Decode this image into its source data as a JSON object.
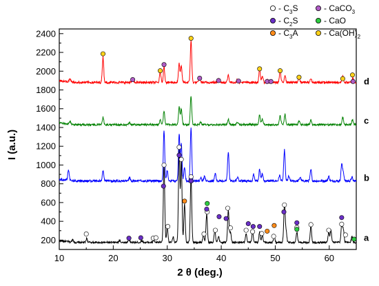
{
  "chart_data": {
    "type": "line",
    "title": "",
    "xlabel_main": "2 θ",
    "xlabel_unit": " (deg.)",
    "ylabel": "I (a.u.)",
    "xlim": [
      10,
      65
    ],
    "ylim": [
      100,
      2450
    ],
    "x_ticks": [
      "10",
      "20",
      "30",
      "40",
      "50",
      "60"
    ],
    "x_tick_values": [
      10,
      20,
      30,
      40,
      50,
      60
    ],
    "y_ticks": [
      "200",
      "400",
      "600",
      "800",
      "1000",
      "1200",
      "1400",
      "1600",
      "1800",
      "2000",
      "2200",
      "2400"
    ],
    "y_tick_values": [
      200,
      400,
      600,
      800,
      1000,
      1200,
      1400,
      1600,
      1800,
      2000,
      2200,
      2400
    ],
    "grid": false,
    "legend": {
      "placement": "top-right",
      "entries": [
        {
          "symbol": "C3S",
          "base": "C",
          "sub": "3",
          "tail": "S",
          "color": "#ffffff",
          "stroke": "#000000"
        },
        {
          "symbol": "CaCO3",
          "base": "CaCO",
          "sub": "3",
          "tail": "",
          "color": "#b05cc6",
          "stroke": "#000000"
        },
        {
          "symbol": "C2S",
          "base": "C",
          "sub": "2",
          "tail": "S",
          "color": "#6a2fc6",
          "stroke": "#000000"
        },
        {
          "symbol": "CaO",
          "base": "CaO",
          "sub": "",
          "tail": "",
          "color": "#2ecc40",
          "stroke": "#000000"
        },
        {
          "symbol": "C3A",
          "base": "C",
          "sub": "3",
          "tail": "A",
          "color": "#ff8c1a",
          "stroke": "#000000"
        },
        {
          "symbol": "Ca(OH)2",
          "base": "Ca(OH)",
          "sub": "2",
          "tail": "",
          "color": "#ffd21a",
          "stroke": "#000000"
        }
      ]
    },
    "series": [
      {
        "name": "a",
        "color": "#000000",
        "baseline": 175,
        "noise": 10,
        "peaks": [
          [
            12.5,
            30
          ],
          [
            15.1,
            45
          ],
          [
            21.2,
            25
          ],
          [
            22.9,
            30
          ],
          [
            25.3,
            20
          ],
          [
            27.5,
            25
          ],
          [
            29.4,
            830
          ],
          [
            30.0,
            170
          ],
          [
            31.1,
            55
          ],
          [
            32.2,
            1000
          ],
          [
            32.6,
            880
          ],
          [
            33.2,
            410
          ],
          [
            34.4,
            700
          ],
          [
            36.7,
            80
          ],
          [
            37.3,
            300
          ],
          [
            38.8,
            130
          ],
          [
            39.5,
            60
          ],
          [
            41.3,
            350
          ],
          [
            41.7,
            110
          ],
          [
            44.6,
            90
          ],
          [
            45.8,
            120
          ],
          [
            47.1,
            110
          ],
          [
            47.6,
            80
          ],
          [
            49.8,
            60
          ],
          [
            51.7,
            415
          ],
          [
            52.0,
            120
          ],
          [
            54.0,
            110
          ],
          [
            56.6,
            180
          ],
          [
            59.9,
            110
          ],
          [
            60.3,
            130
          ],
          [
            62.3,
            185
          ],
          [
            62.6,
            140
          ],
          [
            64.2,
            60
          ]
        ]
      },
      {
        "name": "b",
        "color": "#0000ff",
        "baseline": 830,
        "noise": 12,
        "peaks": [
          [
            11.7,
            110
          ],
          [
            18.1,
            110
          ],
          [
            23.0,
            35
          ],
          [
            29.4,
            540
          ],
          [
            30.0,
            110
          ],
          [
            32.2,
            500
          ],
          [
            32.6,
            400
          ],
          [
            33.2,
            140
          ],
          [
            34.4,
            570
          ],
          [
            36.2,
            40
          ],
          [
            36.9,
            50
          ],
          [
            38.9,
            90
          ],
          [
            41.3,
            310
          ],
          [
            43.0,
            40
          ],
          [
            46.0,
            70
          ],
          [
            47.1,
            120
          ],
          [
            47.6,
            80
          ],
          [
            50.8,
            60
          ],
          [
            51.7,
            330
          ],
          [
            52.5,
            50
          ],
          [
            54.6,
            40
          ],
          [
            56.6,
            120
          ],
          [
            59.9,
            50
          ],
          [
            62.3,
            180
          ],
          [
            62.6,
            90
          ],
          [
            64.2,
            40
          ]
        ]
      },
      {
        "name": "c",
        "color": "#008000",
        "baseline": 1430,
        "noise": 10,
        "peaks": [
          [
            12.0,
            30
          ],
          [
            18.1,
            80
          ],
          [
            23.0,
            25
          ],
          [
            28.7,
            50
          ],
          [
            29.4,
            150
          ],
          [
            32.2,
            190
          ],
          [
            32.6,
            170
          ],
          [
            34.4,
            310
          ],
          [
            36.2,
            30
          ],
          [
            41.3,
            60
          ],
          [
            43.0,
            25
          ],
          [
            47.1,
            110
          ],
          [
            47.6,
            60
          ],
          [
            50.9,
            100
          ],
          [
            51.8,
            110
          ],
          [
            54.4,
            40
          ],
          [
            56.6,
            50
          ],
          [
            62.5,
            80
          ],
          [
            64.3,
            50
          ]
        ]
      },
      {
        "name": "d",
        "color": "#ff0000",
        "baseline": 1880,
        "noise": 12,
        "peaks": [
          [
            12.0,
            30
          ],
          [
            18.1,
            270
          ],
          [
            23.6,
            35
          ],
          [
            28.7,
            110
          ],
          [
            29.4,
            170
          ],
          [
            32.2,
            200
          ],
          [
            32.6,
            170
          ],
          [
            34.4,
            450
          ],
          [
            36.0,
            60
          ],
          [
            39.5,
            50
          ],
          [
            41.3,
            80
          ],
          [
            43.0,
            30
          ],
          [
            47.1,
            140
          ],
          [
            47.6,
            70
          ],
          [
            48.5,
            30
          ],
          [
            50.9,
            120
          ],
          [
            51.8,
            80
          ],
          [
            54.4,
            60
          ],
          [
            56.6,
            40
          ],
          [
            62.5,
            70
          ],
          [
            64.4,
            50
          ]
        ]
      }
    ],
    "markers": {
      "C3S": [
        [
          15.0,
          265
        ],
        [
          27.4,
          220
        ],
        [
          27.9,
          225
        ],
        [
          29.4,
          1000
        ],
        [
          30.1,
          345
        ],
        [
          32.2,
          1190
        ],
        [
          32.6,
          1060
        ],
        [
          34.4,
          875
        ],
        [
          36.8,
          265
        ],
        [
          37.4,
          500
        ],
        [
          38.9,
          305
        ],
        [
          41.2,
          540
        ],
        [
          41.7,
          330
        ],
        [
          44.6,
          305
        ],
        [
          45.8,
          290
        ],
        [
          47.5,
          270
        ],
        [
          49.7,
          240
        ],
        [
          51.7,
          575
        ],
        [
          54.0,
          335
        ],
        [
          56.6,
          365
        ],
        [
          59.9,
          305
        ],
        [
          62.3,
          370
        ],
        [
          63.0,
          255
        ]
      ],
      "C2S": [
        [
          22.9,
          220
        ],
        [
          25.1,
          225
        ],
        [
          29.3,
          775
        ],
        [
          32.2,
          1105
        ],
        [
          34.4,
          830
        ],
        [
          37.3,
          530
        ],
        [
          39.6,
          450
        ],
        [
          40.9,
          430
        ],
        [
          45.0,
          375
        ],
        [
          45.9,
          345
        ],
        [
          47.1,
          345
        ],
        [
          51.6,
          500
        ],
        [
          54.0,
          385
        ],
        [
          62.3,
          440
        ]
      ],
      "C3A": [
        [
          33.2,
          615
        ],
        [
          48.5,
          295
        ],
        [
          49.8,
          355
        ]
      ],
      "CaO": [
        [
          37.4,
          590
        ],
        [
          54.0,
          315
        ],
        [
          64.6,
          210
        ]
      ],
      "CaCO3": [
        [
          23.6,
          1910
        ],
        [
          29.4,
          2070
        ],
        [
          36.0,
          1925
        ],
        [
          39.5,
          1900
        ],
        [
          43.2,
          1895
        ],
        [
          48.5,
          1890
        ],
        [
          49.2,
          1890
        ],
        [
          64.4,
          1890
        ]
      ],
      "CaOH2": [
        [
          18.1,
          2185
        ],
        [
          28.7,
          2005
        ],
        [
          34.4,
          2350
        ],
        [
          47.1,
          2025
        ],
        [
          50.9,
          2005
        ],
        [
          54.4,
          1935
        ],
        [
          62.5,
          1920
        ],
        [
          64.3,
          1960
        ]
      ]
    },
    "trace_labels": [
      {
        "text": "a",
        "y": 220
      },
      {
        "text": "b",
        "y": 860
      },
      {
        "text": "c",
        "y": 1470
      },
      {
        "text": "d",
        "y": 1890
      }
    ]
  }
}
